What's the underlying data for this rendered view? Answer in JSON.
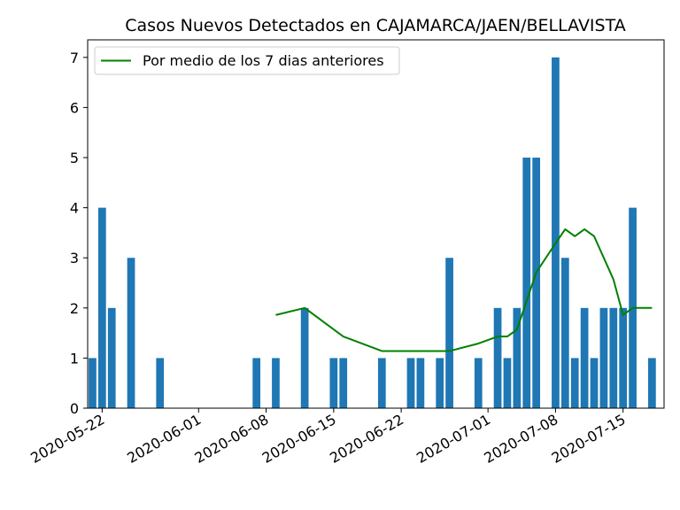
{
  "chart_data": {
    "type": "bar",
    "title": "Casos Nuevos Detectados en CAJAMARCA/JAEN/BELLAVISTA",
    "xlabel": "",
    "ylabel": "",
    "ylim": [
      0,
      7.35
    ],
    "xlim": [
      "2020-05-20T12:00",
      "2020-07-19T06:00"
    ],
    "grid": false,
    "legend_position": "top-left",
    "y_ticks": [
      0,
      1,
      2,
      3,
      4,
      5,
      6,
      7
    ],
    "x_ticks": [
      "2020-05-22",
      "2020-06-01",
      "2020-06-08",
      "2020-06-15",
      "2020-06-22",
      "2020-07-01",
      "2020-07-08",
      "2020-07-15"
    ],
    "bars": {
      "color": "#1f77b4",
      "dates": [
        "2020-05-21",
        "2020-05-22",
        "2020-05-23",
        "2020-05-25",
        "2020-05-28",
        "2020-06-07",
        "2020-06-09",
        "2020-06-12",
        "2020-06-15",
        "2020-06-16",
        "2020-06-20",
        "2020-06-23",
        "2020-06-24",
        "2020-06-26",
        "2020-06-27",
        "2020-06-30",
        "2020-07-02",
        "2020-07-03",
        "2020-07-04",
        "2020-07-05",
        "2020-07-06",
        "2020-07-08",
        "2020-07-09",
        "2020-07-10",
        "2020-07-11",
        "2020-07-12",
        "2020-07-13",
        "2020-07-14",
        "2020-07-15",
        "2020-07-16",
        "2020-07-18"
      ],
      "values": [
        1,
        4,
        2,
        3,
        1,
        1,
        1,
        2,
        1,
        1,
        1,
        1,
        1,
        1,
        3,
        1,
        2,
        1,
        2,
        5,
        5,
        7,
        3,
        1,
        2,
        1,
        2,
        2,
        2,
        4,
        1
      ]
    },
    "series": [
      {
        "name": "Por medio de los 7 dias anteriores",
        "type": "line",
        "color": "#008000",
        "x": [
          "2020-06-09",
          "2020-06-12",
          "2020-06-16",
          "2020-06-20",
          "2020-06-27",
          "2020-06-30",
          "2020-07-02",
          "2020-07-03",
          "2020-07-04",
          "2020-07-06",
          "2020-07-08",
          "2020-07-09",
          "2020-07-10",
          "2020-07-11",
          "2020-07-12",
          "2020-07-14",
          "2020-07-15",
          "2020-07-16",
          "2020-07-18"
        ],
        "y": [
          1.86,
          2.0,
          1.43,
          1.14,
          1.14,
          1.29,
          1.43,
          1.43,
          1.57,
          2.71,
          3.29,
          3.57,
          3.43,
          3.57,
          3.43,
          2.57,
          1.86,
          2.0,
          2.0
        ]
      }
    ]
  }
}
